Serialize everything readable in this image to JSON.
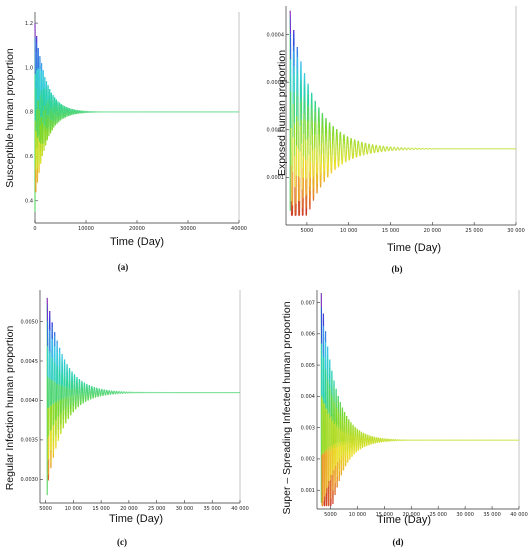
{
  "chart_data": [
    {
      "type": "line",
      "panel_label": "(a)",
      "ylabel": "Susceptible  human  proportion",
      "xlabel": "Time (Day)",
      "xlim": [
        0,
        40000
      ],
      "ylim": [
        0.3,
        1.25
      ],
      "xticks": [
        0,
        10000,
        20000,
        30000,
        40000
      ],
      "xtick_labels": [
        "0",
        "10000",
        "20000",
        "30000",
        "40000"
      ],
      "yticks": [
        0.4,
        0.6,
        0.8,
        1.0,
        1.2
      ],
      "ytick_labels": [
        "0.4",
        "0.6",
        "0.8",
        "1.0",
        "1.2"
      ],
      "series": [
        {
          "start": 0,
          "initial": 0.35,
          "peak": 1.2,
          "trough": 0.37,
          "equilibrium": 0.8,
          "settle_time": 9000
        }
      ]
    },
    {
      "type": "line",
      "panel_label": "(b)",
      "ylabel": "Exposed  human  proportion",
      "xlabel": "Time (Day)",
      "xlim": [
        2500,
        30000
      ],
      "ylim": [
        0,
        0.00046
      ],
      "xticks": [
        5000,
        10000,
        15000,
        20000,
        25000,
        30000
      ],
      "xtick_labels": [
        "5000",
        "10 000",
        "15 000",
        "20 000",
        "25 000",
        "30 000"
      ],
      "yticks": [
        0.0001,
        0.0002,
        0.0003,
        0.0004
      ],
      "ytick_labels": [
        "0.0001",
        "0.0002",
        "0.0003",
        "0.0004"
      ],
      "series": [
        {
          "start": 3000,
          "initial": 3e-05,
          "peak": 0.00045,
          "trough": 2e-05,
          "equilibrium": 0.00016,
          "settle_time": 12000
        }
      ]
    },
    {
      "type": "line",
      "panel_label": "(c)",
      "ylabel": "Regular  Infection  human proportion",
      "xlabel": "Time (Day)",
      "xlim": [
        4000,
        40000
      ],
      "ylim": [
        0.0027,
        0.0054
      ],
      "xticks": [
        5000,
        10000,
        15000,
        20000,
        25000,
        30000,
        35000,
        40000
      ],
      "xtick_labels": [
        "5000",
        "10 000",
        "15 000",
        "20 000",
        "25 000",
        "30 000",
        "35 000",
        "40 000"
      ],
      "yticks": [
        0.003,
        0.0035,
        0.004,
        0.0045,
        0.005
      ],
      "ytick_labels": [
        "0.0030",
        "0.0035",
        "0.0040",
        "0.0045",
        "0.0050"
      ],
      "series": [
        {
          "start": 5300,
          "initial": 0.0028,
          "peak": 0.0053,
          "trough": 0.00285,
          "equilibrium": 0.0041,
          "settle_time": 12500
        }
      ]
    },
    {
      "type": "line",
      "panel_label": "(d)",
      "ylabel": "Super – Spreading Infected human proportion",
      "xlabel": "Time (Day)",
      "xlim": [
        2500,
        40000
      ],
      "ylim": [
        0.0004,
        0.0074
      ],
      "xticks": [
        5000,
        10000,
        15000,
        20000,
        25000,
        30000,
        35000,
        40000
      ],
      "xtick_labels": [
        "5000",
        "10 000",
        "15 000",
        "20 000",
        "25 000",
        "30 000",
        "35 000",
        "40 000"
      ],
      "yticks": [
        0.001,
        0.002,
        0.003,
        0.004,
        0.005,
        0.006,
        0.007
      ],
      "ytick_labels": [
        "0.001",
        "0.002",
        "0.003",
        "0.004",
        "0.005",
        "0.006",
        "0.007"
      ],
      "series": [
        {
          "start": 3300,
          "initial": 0.0006,
          "peak": 0.0073,
          "trough": 0.0005,
          "equilibrium": 0.0026,
          "settle_time": 11000
        }
      ]
    }
  ]
}
